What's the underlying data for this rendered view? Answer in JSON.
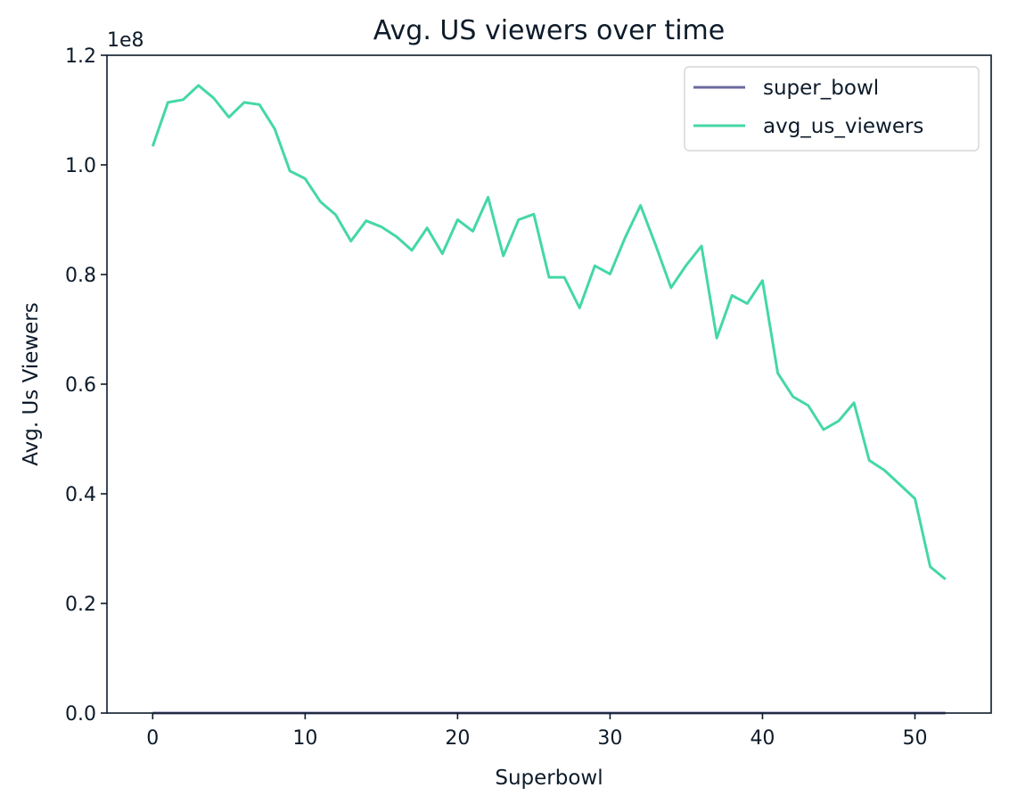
{
  "chart_data": {
    "type": "line",
    "title": "Avg. US viewers over time",
    "xlabel": "Superbowl",
    "ylabel": "Avg. Us Viewers",
    "y_offset_label": "1e8",
    "xlim": [
      -3,
      55
    ],
    "ylim": [
      0,
      1.2
    ],
    "xticks": [
      0,
      10,
      20,
      30,
      40,
      50
    ],
    "xtick_labels": [
      "0",
      "10",
      "20",
      "30",
      "40",
      "50"
    ],
    "yticks": [
      0.0,
      0.2,
      0.4,
      0.6,
      0.8,
      1.0,
      1.2
    ],
    "ytick_labels": [
      "0.0",
      "0.2",
      "0.4",
      "0.6",
      "0.8",
      "1.0",
      "1.2"
    ],
    "grid": false,
    "legend_position": "upper-right",
    "x": [
      0,
      1,
      2,
      3,
      4,
      5,
      6,
      7,
      8,
      9,
      10,
      11,
      12,
      13,
      14,
      15,
      16,
      17,
      18,
      19,
      20,
      21,
      22,
      23,
      24,
      25,
      26,
      27,
      28,
      29,
      30,
      31,
      32,
      33,
      34,
      35,
      36,
      37,
      38,
      39,
      40,
      41,
      42,
      43,
      44,
      45,
      46,
      47,
      48,
      49,
      50,
      51,
      52
    ],
    "series": [
      {
        "name": "super_bowl",
        "color": "#6b6a9c",
        "values": [
          5.2e-07,
          5.1e-07,
          5e-07,
          4.9e-07,
          4.8e-07,
          4.7e-07,
          4.6e-07,
          4.5e-07,
          4.4e-07,
          4.3e-07,
          4.2e-07,
          4.1e-07,
          4e-07,
          3.9e-07,
          3.8e-07,
          3.7e-07,
          3.6e-07,
          3.5e-07,
          3.4e-07,
          3.3e-07,
          3.2e-07,
          3.1e-07,
          3e-07,
          2.9e-07,
          2.8e-07,
          2.7e-07,
          2.6e-07,
          2.5e-07,
          2.4e-07,
          2.3e-07,
          2.2e-07,
          2.1e-07,
          2e-07,
          1.9e-07,
          1.8e-07,
          1.7e-07,
          1.6e-07,
          1.5e-07,
          1.4e-07,
          1.3e-07,
          1.2e-07,
          1.1e-07,
          1e-07,
          9e-08,
          8e-08,
          7e-08,
          6e-08,
          5e-08,
          4e-08,
          3e-08,
          2e-08,
          1e-08,
          0.0
        ]
      },
      {
        "name": "avg_us_viewers",
        "color": "#44d7a8",
        "values": [
          1.034,
          1.114,
          1.119,
          1.145,
          1.122,
          1.087,
          1.114,
          1.11,
          1.066,
          0.989,
          0.975,
          0.933,
          0.909,
          0.861,
          0.898,
          0.887,
          0.869,
          0.844,
          0.885,
          0.838,
          0.9,
          0.879,
          0.941,
          0.834,
          0.9,
          0.91,
          0.795,
          0.795,
          0.739,
          0.816,
          0.801,
          0.868,
          0.926,
          0.853,
          0.776,
          0.817,
          0.852,
          0.684,
          0.762,
          0.747,
          0.789,
          0.62,
          0.577,
          0.561,
          0.517,
          0.533,
          0.566,
          0.461,
          0.443,
          0.417,
          0.391,
          0.267,
          0.244
        ]
      }
    ]
  }
}
